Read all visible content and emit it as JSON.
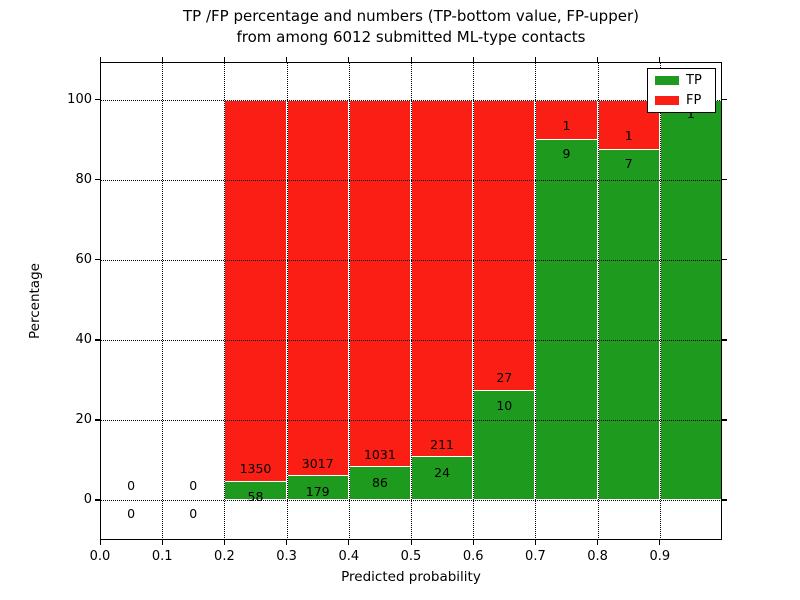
{
  "figure": {
    "title_line1": "TP /FP percentage and numbers (TP-bottom value, FP-upper)",
    "title_line2": "from among 6012 submitted ML-type contacts"
  },
  "chart_data": {
    "type": "bar",
    "variant": "stacked-percentage",
    "title": "TP /FP percentage and numbers (TP-bottom value, FP-upper)\nfrom among 6012 submitted ML-type contacts",
    "xlabel": "Predicted probability",
    "ylabel": "Percentage",
    "total_contacts": 6012,
    "xlim": [
      0.0,
      1.0
    ],
    "ylim": [
      -10.0,
      109.4
    ],
    "grid": "dotted",
    "x_tick_values": [
      0.0,
      0.1,
      0.2,
      0.3,
      0.4,
      0.5,
      0.6,
      0.7,
      0.8,
      0.9
    ],
    "x_tick_labels": [
      "0.0",
      "0.1",
      "0.2",
      "0.3",
      "0.4",
      "0.5",
      "0.6",
      "0.7",
      "0.8",
      "0.9"
    ],
    "y_tick_values": [
      0,
      20,
      40,
      60,
      80,
      100
    ],
    "y_tick_labels": [
      "0",
      "20",
      "40",
      "60",
      "80",
      "100"
    ],
    "legend": {
      "position": "upper right",
      "entries": [
        {
          "label": "TP",
          "color": "#1e9b1e"
        },
        {
          "label": "FP",
          "color": "#fb1e15"
        }
      ]
    },
    "colors": {
      "tp": "#1e9b1e",
      "fp": "#fb1e15",
      "bar_edge": "#ffffff",
      "grid": "#000000",
      "text": "#000000",
      "background": "#ffffff"
    },
    "bins": [
      {
        "x_start": 0.0,
        "x_end": 0.1,
        "tp": 0,
        "fp": 0,
        "tp_pct": 0.0,
        "tp_label": "0",
        "fp_label": "0"
      },
      {
        "x_start": 0.1,
        "x_end": 0.2,
        "tp": 0,
        "fp": 0,
        "tp_pct": 0.0,
        "tp_label": "0",
        "fp_label": "0"
      },
      {
        "x_start": 0.2,
        "x_end": 0.3,
        "tp": 58,
        "fp": 1350,
        "tp_pct": 4.12,
        "tp_label": "58",
        "fp_label": "1350"
      },
      {
        "x_start": 0.3,
        "x_end": 0.4,
        "tp": 179,
        "fp": 3017,
        "tp_pct": 5.6,
        "tp_label": "179",
        "fp_label": "3017"
      },
      {
        "x_start": 0.4,
        "x_end": 0.5,
        "tp": 86,
        "fp": 1031,
        "tp_pct": 7.7,
        "tp_label": "86",
        "fp_label": "1031"
      },
      {
        "x_start": 0.5,
        "x_end": 0.6,
        "tp": 24,
        "fp": 211,
        "tp_pct": 10.21,
        "tp_label": "24",
        "fp_label": "211"
      },
      {
        "x_start": 0.6,
        "x_end": 0.7,
        "tp": 10,
        "fp": 27,
        "tp_pct": 27.03,
        "tp_label": "10",
        "fp_label": "27"
      },
      {
        "x_start": 0.7,
        "x_end": 0.8,
        "tp": 9,
        "fp": 1,
        "tp_pct": 90.0,
        "tp_label": "9",
        "fp_label": "1"
      },
      {
        "x_start": 0.8,
        "x_end": 0.9,
        "tp": 7,
        "fp": 1,
        "tp_pct": 87.5,
        "tp_label": "7",
        "fp_label": "1"
      },
      {
        "x_start": 0.9,
        "x_end": 1.0,
        "tp": 1,
        "fp": 0,
        "tp_pct": 100.0,
        "tp_label": "1",
        "fp_label": "0"
      }
    ]
  }
}
